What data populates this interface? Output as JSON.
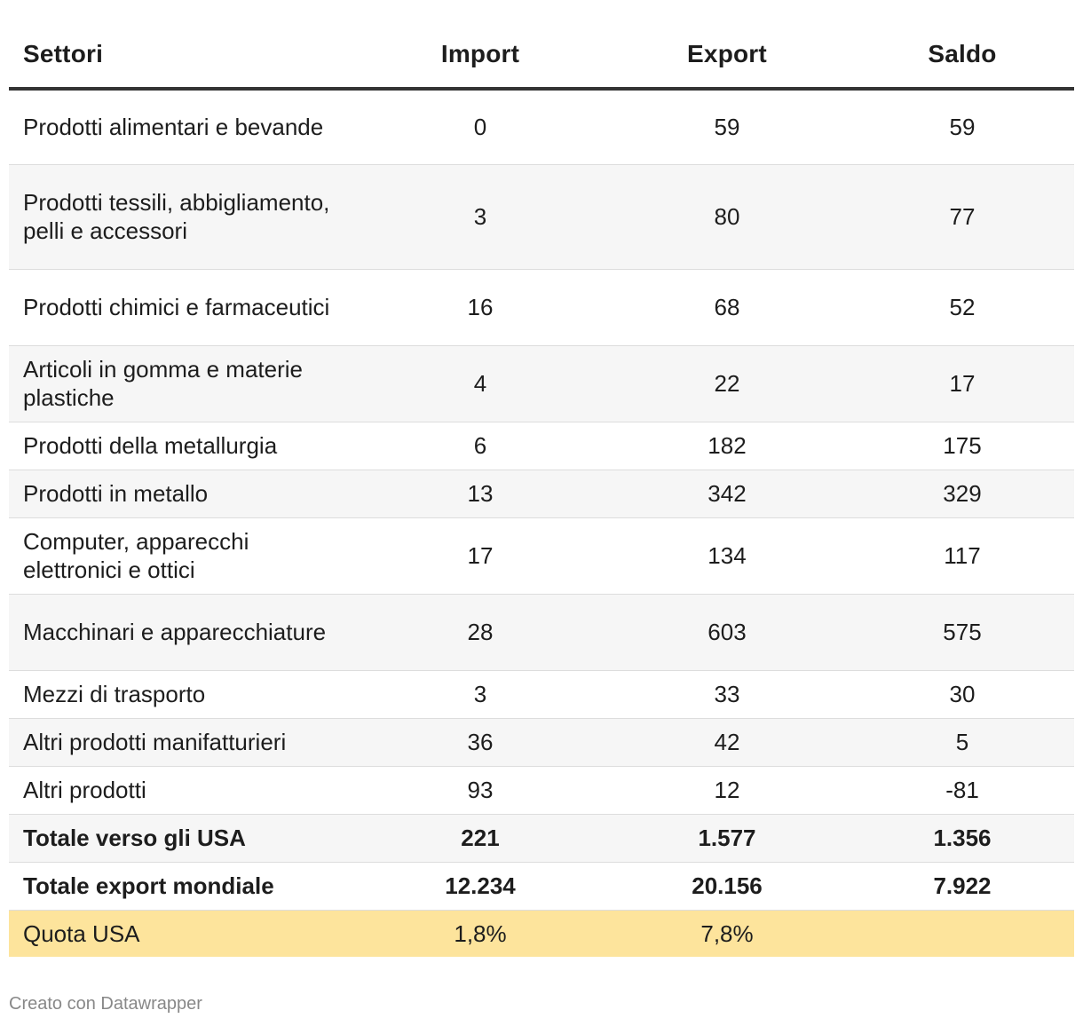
{
  "chart_data": {
    "type": "table",
    "columns": [
      "Settori",
      "Import",
      "Export",
      "Saldo"
    ],
    "rows": [
      {
        "settore": "Prodotti alimentari e bevande",
        "import": "0",
        "export": "59",
        "saldo": "59"
      },
      {
        "settore": "Prodotti tessili, abbigliamento, pelli e accessori",
        "import": "3",
        "export": "80",
        "saldo": "77"
      },
      {
        "settore": "Prodotti chimici e farmaceutici",
        "import": "16",
        "export": "68",
        "saldo": "52"
      },
      {
        "settore": "Articoli in gomma e materie plastiche",
        "import": "4",
        "export": "22",
        "saldo": "17"
      },
      {
        "settore": "Prodotti della metallurgia",
        "import": "6",
        "export": "182",
        "saldo": "175"
      },
      {
        "settore": "Prodotti in metallo",
        "import": "13",
        "export": "342",
        "saldo": "329"
      },
      {
        "settore": "Computer, apparecchi elettronici e ottici",
        "import": "17",
        "export": "134",
        "saldo": "117"
      },
      {
        "settore": "Macchinari e apparecchiature",
        "import": "28",
        "export": "603",
        "saldo": "575"
      },
      {
        "settore": "Mezzi di trasporto",
        "import": "3",
        "export": "33",
        "saldo": "30"
      },
      {
        "settore": "Altri prodotti manifatturieri",
        "import": "36",
        "export": "42",
        "saldo": "5"
      },
      {
        "settore": "Altri prodotti",
        "import": "93",
        "export": "12",
        "saldo": "-81"
      }
    ],
    "totals": [
      {
        "settore": "Totale verso gli USA",
        "import": "221",
        "export": "1.577",
        "saldo": "1.356"
      },
      {
        "settore": "Totale export mondiale",
        "import": "12.234",
        "export": "20.156",
        "saldo": "7.922"
      }
    ],
    "quota": {
      "settore": "Quota USA",
      "import": "1,8%",
      "export": "7,8%",
      "saldo": ""
    }
  },
  "footer": {
    "credit": "Creato con Datawrapper"
  },
  "colors": {
    "highlight": "#fde49c",
    "stripe": "#f6f6f6",
    "header_rule": "#333333"
  }
}
